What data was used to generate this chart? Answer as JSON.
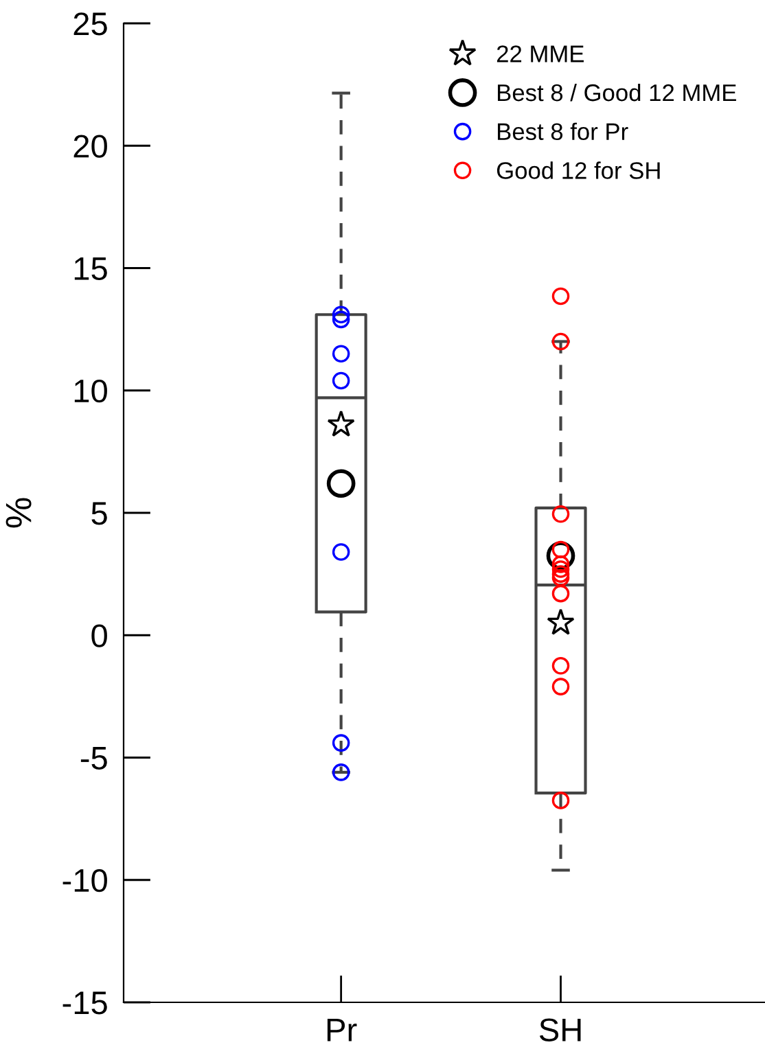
{
  "chart_data": {
    "type": "box",
    "ylabel": "%",
    "categories": [
      "Pr",
      "SH"
    ],
    "ylim": [
      -15,
      25
    ],
    "yticks": [
      -15,
      -10,
      -5,
      0,
      5,
      10,
      15,
      20,
      25
    ],
    "grid": false,
    "legend": "top right",
    "color": "#444444",
    "boxes": [
      {
        "low": -5.6,
        "q1": 0.95,
        "median": 9.7,
        "q3": 13.1,
        "high": 22.15
      },
      {
        "low": -9.6,
        "q1": -6.45,
        "median": 2.05,
        "q3": 5.2,
        "high": 12.0
      }
    ],
    "series": [
      {
        "name": "22 MME",
        "type": "scatter",
        "marker": "star",
        "color": "#000000",
        "x": [
          "Pr",
          "SH"
        ],
        "values": [
          8.6,
          0.5
        ]
      },
      {
        "name": "Best 8 / Good 12 MME",
        "type": "scatter",
        "marker": "circle",
        "color": "#000000",
        "x": [
          "Pr",
          "SH"
        ],
        "values": [
          6.2,
          3.25
        ]
      },
      {
        "name": "Best 8 for Pr",
        "type": "scatter",
        "marker": "circle",
        "color": "#0000ff",
        "x": [
          "Pr",
          "Pr",
          "Pr",
          "Pr",
          "Pr",
          "Pr",
          "Pr"
        ],
        "values": [
          13.1,
          12.9,
          11.5,
          10.4,
          3.4,
          -4.4,
          -5.6
        ]
      },
      {
        "name": "Good 12 for SH",
        "type": "scatter",
        "marker": "circle",
        "color": "#ff0000",
        "x": [
          "SH",
          "SH",
          "SH",
          "SH",
          "SH",
          "SH",
          "SH",
          "SH",
          "SH",
          "SH",
          "SH",
          "SH"
        ],
        "values": [
          13.85,
          12.0,
          4.95,
          3.5,
          2.9,
          2.7,
          2.5,
          2.35,
          1.7,
          -1.25,
          -2.1,
          -6.75
        ]
      }
    ]
  }
}
